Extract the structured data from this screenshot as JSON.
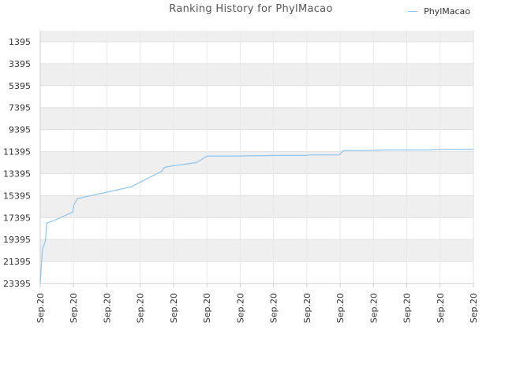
{
  "chart_data": {
    "type": "line",
    "title": "Ranking History for PhylMacao",
    "xlabel": "",
    "ylabel": "",
    "y_reversed": true,
    "ylim": [
      23395,
      395
    ],
    "y_ticks": [
      "1395",
      "3395",
      "5395",
      "7395",
      "9395",
      "11395",
      "13395",
      "15395",
      "17395",
      "19395",
      "21395",
      "23395"
    ],
    "x_ticks": [
      "Sep.20",
      "Sep.20",
      "Sep.20",
      "Sep.20",
      "Sep.20",
      "Sep.20",
      "Sep.20",
      "Sep.20",
      "Sep.20",
      "Sep.20",
      "Sep.20",
      "Sep.20",
      "Sep.20",
      "Sep.20"
    ],
    "grid": true,
    "legend_position": "top-right",
    "series": [
      {
        "name": "PhylMacao",
        "color": "#8cc4ef",
        "x": [
          0.0,
          0.005,
          0.012,
          0.015,
          0.03,
          0.075,
          0.077,
          0.085,
          0.095,
          0.21,
          0.28,
          0.285,
          0.29,
          0.305,
          0.36,
          0.365,
          0.385,
          0.45,
          0.55,
          0.615,
          0.62,
          0.69,
          0.7,
          0.75,
          0.8,
          0.9,
          0.92,
          1.0
        ],
        "y": [
          23395,
          20295,
          19495,
          17895,
          17695,
          16895,
          16295,
          15695,
          15595,
          14595,
          13195,
          12895,
          12795,
          12695,
          12395,
          12295,
          11795,
          11795,
          11745,
          11745,
          11695,
          11695,
          11295,
          11295,
          11245,
          11245,
          11195,
          11195
        ]
      }
    ]
  }
}
